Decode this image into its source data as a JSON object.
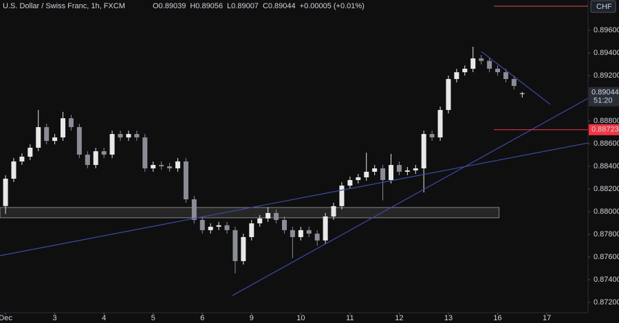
{
  "chart_data": {
    "type": "candlestick",
    "title": "U.S. Dollar / Swiss Franc, 1h, FXCM",
    "ohlc_labels": [
      "O0.89039",
      "H0.89056",
      "L0.89007",
      "C0.89044"
    ],
    "change": "+0.00005 (+0.01%)",
    "x": [
      0,
      4,
      8,
      12,
      16,
      20,
      24,
      28,
      32,
      36,
      40,
      44,
      48,
      52,
      56,
      60,
      64,
      68,
      72,
      76,
      80,
      84,
      88,
      92,
      96,
      100,
      104,
      108,
      112,
      116,
      120,
      124,
      128,
      132,
      136,
      140,
      144,
      148,
      152,
      156,
      160,
      164,
      168,
      172,
      176,
      180,
      184,
      188,
      192,
      196,
      200,
      204,
      208,
      212,
      216,
      220,
      224,
      228,
      232,
      236,
      240,
      244,
      248,
      252
    ],
    "open": [
      0.8805,
      0.88291,
      0.88443,
      0.88485,
      0.88564,
      0.88746,
      0.88624,
      0.88655,
      0.88824,
      0.88746,
      0.88503,
      0.88412,
      0.88533,
      0.88503,
      0.88685,
      0.88655,
      0.88685,
      0.88655,
      0.88382,
      0.88412,
      0.884,
      0.88382,
      0.88443,
      0.88109,
      0.87927,
      0.87837,
      0.87867,
      0.8788,
      0.87837,
      0.87564,
      0.87776,
      0.87897,
      0.8794,
      0.87988,
      0.87927,
      0.87837,
      0.87776,
      0.87837,
      0.87806,
      0.87746,
      0.87958,
      0.88049,
      0.8823,
      0.88279,
      0.88303,
      0.88352,
      0.88382,
      0.88279,
      0.88412,
      0.88352,
      0.88364,
      0.88382,
      0.88685,
      0.88655,
      0.88897,
      0.8917,
      0.8923,
      0.89261,
      0.89352,
      0.8933,
      0.89261,
      0.8923,
      0.8917,
      0.89039
    ],
    "high": [
      0.88321,
      0.88473,
      0.88515,
      0.88594,
      0.88897,
      0.88776,
      0.88685,
      0.8888,
      0.88854,
      0.88776,
      0.88533,
      0.88563,
      0.88563,
      0.88715,
      0.88715,
      0.88715,
      0.88715,
      0.88685,
      0.88442,
      0.88442,
      0.8843,
      0.88473,
      0.88473,
      0.88139,
      0.87957,
      0.87897,
      0.8791,
      0.8791,
      0.87867,
      0.87806,
      0.87927,
      0.8797,
      0.8804,
      0.88018,
      0.87957,
      0.87867,
      0.87867,
      0.87867,
      0.87836,
      0.87988,
      0.88079,
      0.8826,
      0.88309,
      0.88333,
      0.8852,
      0.88412,
      0.88412,
      0.8851,
      0.88442,
      0.88394,
      0.88412,
      0.88715,
      0.88715,
      0.88927,
      0.892,
      0.8926,
      0.89291,
      0.89455,
      0.89382,
      0.8936,
      0.89291,
      0.8926,
      0.892,
      0.89056
    ],
    "low": [
      0.8798,
      0.88261,
      0.88413,
      0.88455,
      0.88534,
      0.88594,
      0.88594,
      0.88625,
      0.88716,
      0.88473,
      0.88382,
      0.88382,
      0.88473,
      0.88473,
      0.88625,
      0.88625,
      0.88625,
      0.88352,
      0.88352,
      0.8837,
      0.88352,
      0.88352,
      0.88079,
      0.87897,
      0.87807,
      0.87807,
      0.87837,
      0.87807,
      0.87455,
      0.87534,
      0.87746,
      0.87867,
      0.8791,
      0.87897,
      0.87807,
      0.8759,
      0.87746,
      0.87776,
      0.877,
      0.87716,
      0.87928,
      0.88019,
      0.882,
      0.88249,
      0.88273,
      0.88322,
      0.881,
      0.88249,
      0.88322,
      0.88322,
      0.88334,
      0.8817,
      0.88625,
      0.88625,
      0.88867,
      0.8914,
      0.892,
      0.89231,
      0.893,
      0.89231,
      0.892,
      0.8914,
      0.89079,
      0.89007
    ],
    "close": [
      0.88291,
      0.88443,
      0.88485,
      0.88564,
      0.88746,
      0.88624,
      0.88655,
      0.88824,
      0.88746,
      0.88503,
      0.88412,
      0.88533,
      0.88503,
      0.88685,
      0.88655,
      0.88685,
      0.88655,
      0.88382,
      0.88412,
      0.884,
      0.88382,
      0.88443,
      0.88109,
      0.87927,
      0.87837,
      0.87867,
      0.8788,
      0.87837,
      0.87564,
      0.87776,
      0.87897,
      0.8794,
      0.87988,
      0.87927,
      0.87837,
      0.87776,
      0.87837,
      0.87806,
      0.87746,
      0.87958,
      0.88049,
      0.8823,
      0.88279,
      0.88303,
      0.88352,
      0.88382,
      0.88279,
      0.88412,
      0.88352,
      0.88364,
      0.88382,
      0.88685,
      0.88655,
      0.88897,
      0.8917,
      0.8923,
      0.89261,
      0.89352,
      0.8933,
      0.89261,
      0.8923,
      0.8917,
      0.89109,
      0.89044
    ],
    "up_color": "#e8e8e8",
    "down_color": "#8a8d96",
    "xlim": [
      -2.7,
      284.1
    ],
    "xticks": [
      {
        "value": 0,
        "label": "Dec"
      },
      {
        "value": 24,
        "label": "3"
      },
      {
        "value": 48,
        "label": "4"
      },
      {
        "value": 72,
        "label": "5"
      },
      {
        "value": 96,
        "label": "6"
      },
      {
        "value": 120,
        "label": "9"
      },
      {
        "value": 144,
        "label": "10"
      },
      {
        "value": 168,
        "label": "11"
      },
      {
        "value": 192,
        "label": "12"
      },
      {
        "value": 216,
        "label": "13"
      },
      {
        "value": 240,
        "label": "16"
      },
      {
        "value": 264,
        "label": "17"
      }
    ],
    "ylim": [
      0.87109,
      0.89867
    ],
    "yticks": [
      {
        "value": 0.896,
        "label": "0.89600"
      },
      {
        "value": 0.894,
        "label": "0.89400"
      },
      {
        "value": 0.892,
        "label": "0.89200"
      },
      {
        "value": 0.888,
        "label": "0.88800"
      },
      {
        "value": 0.886,
        "label": "0.88600"
      },
      {
        "value": 0.884,
        "label": "0.88400"
      },
      {
        "value": 0.882,
        "label": "0.88200"
      },
      {
        "value": 0.88,
        "label": "0.88000"
      },
      {
        "value": 0.878,
        "label": "0.87800"
      },
      {
        "value": 0.876,
        "label": "0.87600"
      },
      {
        "value": 0.874,
        "label": "0.87400"
      },
      {
        "value": 0.872,
        "label": "0.87200"
      }
    ],
    "grid": false,
    "current_price": {
      "value": 0.89044,
      "countdown": "51:20",
      "color": "#2a2e39"
    },
    "alert_level": {
      "value": 0.88723,
      "color": "#f23645"
    },
    "compare": {
      "name": "CHF",
      "color": "#e0533d"
    },
    "zone": {
      "x": [
        -2.7,
        240.7
      ],
      "y": [
        0.87946,
        0.88037
      ],
      "color": "#d0d0d0"
    },
    "trendlines": [
      {
        "x": [
          -2.7,
          284.1
        ],
        "y": [
          0.87612,
          0.88606
        ],
        "color": "#3f4aa8"
      },
      {
        "x": [
          110.7,
          284.1
        ],
        "y": [
          0.87261,
          0.89
        ],
        "color": "#3f4aa8"
      },
      {
        "x": [
          232.1,
          265.7
        ],
        "y": [
          0.89412,
          0.88946
        ],
        "color": "#3f4aa8"
      }
    ]
  }
}
